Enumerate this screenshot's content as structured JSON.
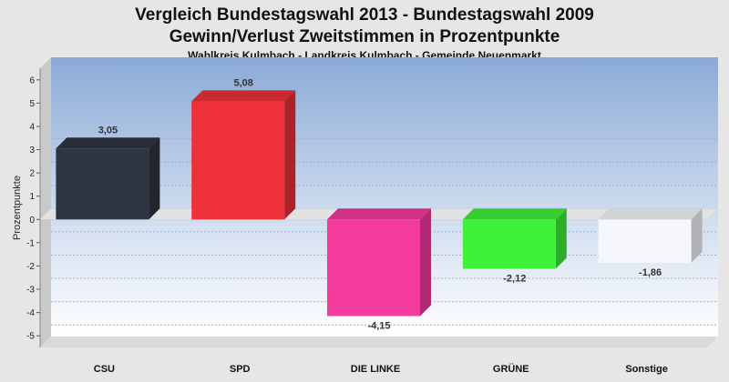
{
  "chart_data": {
    "type": "bar",
    "title": "Vergleich Bundestagswahl 2013 - Bundestagswahl 2009",
    "title2": "Gewinn/Verlust Zweitstimmen in Prozentpunkte",
    "subtitle": "Wahlkreis Kulmbach - Landkreis Kulmbach - Gemeinde Neuenmarkt",
    "ylabel": "Prozentpunkte",
    "xlabel": "",
    "ylim": [
      -5.5,
      6.5
    ],
    "yticks": [
      "6",
      "5",
      "4",
      "3",
      "2",
      "1",
      "0",
      "-1",
      "-2",
      "-3",
      "-4",
      "-5"
    ],
    "categories": [
      "CSU",
      "SPD",
      "DIE LINKE",
      "GRÜNE",
      "Sonstige"
    ],
    "values": [
      3.05,
      5.08,
      -4.15,
      -2.12,
      -1.86
    ],
    "value_labels": [
      "3,05",
      "5,08",
      "-4,15",
      "-2,12",
      "-1,86"
    ],
    "colors": [
      "#2e3440",
      "#ee3038",
      "#f53a9d",
      "#3ef23a",
      "#f6f7fa"
    ],
    "grid": true,
    "legend": "none"
  }
}
